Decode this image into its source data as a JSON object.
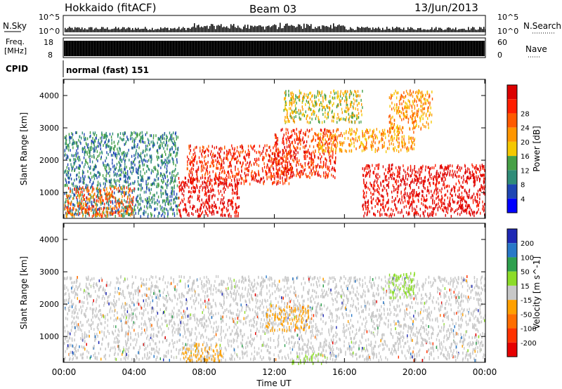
{
  "header": {
    "station": "Hokkaido (fitACF)",
    "beam": "Beam 03",
    "date": "13/Jun/2013"
  },
  "noise_panel": {
    "left_label": "N.Sky",
    "right_label": "N.Search",
    "left_ticks": [
      "10^5",
      "10^0"
    ],
    "right_ticks": [
      "10^5",
      "10^0"
    ]
  },
  "freq_panel": {
    "left_label_1": "Freq.",
    "left_label_2": "[MHz]",
    "right_label": "Nave",
    "left_ticks": [
      "18",
      "8"
    ],
    "right_ticks": [
      "60",
      "0"
    ]
  },
  "cpid_panel": {
    "label": "CPID",
    "value": "normal (fast) 151"
  },
  "colors": {
    "power": [
      "#0000ff",
      "#1e46b4",
      "#2f8c78",
      "#46a046",
      "#f5c800",
      "#ff9600",
      "#ff5a00",
      "#ff1e00",
      "#dc0000"
    ],
    "velocity": [
      "#1e28b4",
      "#2878c8",
      "#2ea04e",
      "#8cdc28",
      "#c8c8c8",
      "#ffa000",
      "#ff6e00",
      "#ff3200",
      "#e60000"
    ]
  },
  "chart_data": [
    {
      "type": "heatmap",
      "ylabel": "Slant Range [km]",
      "ylim": [
        200,
        4500
      ],
      "yticks": [
        "1000",
        "2000",
        "3000",
        "4000"
      ],
      "xlim": [
        "00:00",
        "24:00"
      ],
      "colorbar": {
        "label": "Power [dB]",
        "ticks": [
          "4",
          "8",
          "12",
          "16",
          "20",
          "24",
          "28"
        ]
      },
      "regions": [
        {
          "t0": 0.0,
          "t1": 6.5,
          "r0": 300,
          "r1": 2900,
          "v": 8
        },
        {
          "t0": 0.0,
          "t1": 4.0,
          "r0": 300,
          "r1": 1200,
          "v": 22
        },
        {
          "t0": 6.5,
          "t1": 10.0,
          "r0": 300,
          "r1": 1500,
          "v": 28
        },
        {
          "t0": 7.0,
          "t1": 13.0,
          "r0": 1300,
          "r1": 2500,
          "v": 26
        },
        {
          "t0": 12.0,
          "t1": 15.5,
          "r0": 1500,
          "r1": 3000,
          "v": 25
        },
        {
          "t0": 14.5,
          "t1": 20.0,
          "r0": 2300,
          "r1": 3000,
          "v": 18
        },
        {
          "t0": 17.0,
          "t1": 24.0,
          "r0": 300,
          "r1": 1900,
          "v": 28
        },
        {
          "t0": 12.5,
          "t1": 17.0,
          "r0": 3200,
          "r1": 4200,
          "v": 14
        },
        {
          "t0": 18.5,
          "t1": 21.0,
          "r0": 3000,
          "r1": 4200,
          "v": 16
        }
      ]
    },
    {
      "type": "heatmap",
      "ylabel": "Slant Range [km]",
      "ylim": [
        200,
        4500
      ],
      "yticks": [
        "1000",
        "2000",
        "3000",
        "4000"
      ],
      "xlabel": "Time UT",
      "xticks": [
        "00:00",
        "04:00",
        "08:00",
        "12:00",
        "16:00",
        "20:00",
        "00:00"
      ],
      "xlim": [
        "00:00",
        "24:00"
      ],
      "colorbar": {
        "label": "Velocity [m s^-1]",
        "ticks": [
          "200",
          "100",
          "50",
          "15",
          "-15",
          "-50",
          "-100",
          "-200"
        ]
      },
      "regions": [
        {
          "t0": 0.0,
          "t1": 24.0,
          "r0": 300,
          "r1": 2900,
          "v": 0
        },
        {
          "t0": 6.8,
          "t1": 9.0,
          "r0": 250,
          "r1": 800,
          "v": -60
        },
        {
          "t0": 13.0,
          "t1": 15.0,
          "r0": 200,
          "r1": 500,
          "v": 40
        },
        {
          "t0": 18.5,
          "t1": 20.0,
          "r0": 2200,
          "r1": 3000,
          "v": 40
        },
        {
          "t0": 11.5,
          "t1": 14.0,
          "r0": 1200,
          "r1": 2000,
          "v": -40
        }
      ]
    }
  ]
}
